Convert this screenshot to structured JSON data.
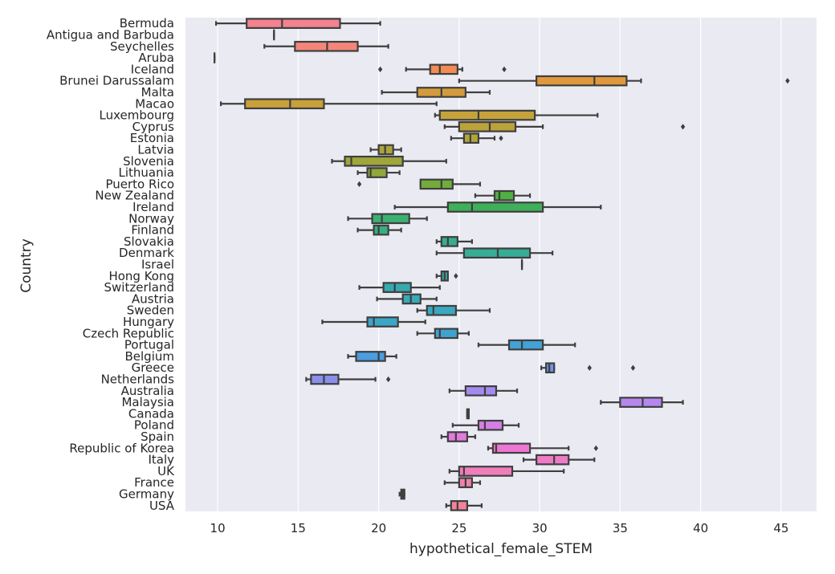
{
  "chart_data": {
    "type": "box",
    "orientation": "horizontal",
    "xlabel": "hypothetical_female_STEM",
    "ylabel": "Country",
    "xlim": [
      8,
      47.2
    ],
    "xticks": [
      10,
      15,
      20,
      25,
      30,
      35,
      40,
      45
    ],
    "grid": true,
    "background": "#EAEAF2",
    "categories": [
      {
        "name": "Bermuda",
        "color": "#f2838f",
        "whislo": 9.9,
        "q1": 11.8,
        "med": 14.0,
        "q3": 17.6,
        "whishi": 20.1,
        "fliers": []
      },
      {
        "name": "Antigua and Barbuda",
        "color": "#f2838f",
        "whislo": 13.5,
        "q1": 13.5,
        "med": 13.5,
        "q3": 13.5,
        "whishi": 13.5,
        "fliers": []
      },
      {
        "name": "Seychelles",
        "color": "#f48679",
        "whislo": 12.9,
        "q1": 14.8,
        "med": 16.8,
        "q3": 18.7,
        "whishi": 20.6,
        "fliers": []
      },
      {
        "name": "Aruba",
        "color": "#f48679",
        "whislo": 9.8,
        "q1": 9.8,
        "med": 9.8,
        "q3": 9.8,
        "whishi": 9.8,
        "fliers": []
      },
      {
        "name": "Iceland",
        "color": "#f38b55",
        "whislo": 21.7,
        "q1": 23.2,
        "med": 23.8,
        "q3": 24.9,
        "whishi": 25.2,
        "fliers": [
          20.1,
          27.8
        ]
      },
      {
        "name": "Brunei Darussalam",
        "color": "#e0983d",
        "whislo": 25.0,
        "q1": 29.8,
        "med": 33.4,
        "q3": 35.4,
        "whishi": 36.3,
        "fliers": [
          45.4
        ]
      },
      {
        "name": "Malta",
        "color": "#d49b3c",
        "whislo": 20.2,
        "q1": 22.4,
        "med": 23.9,
        "q3": 25.4,
        "whishi": 26.9,
        "fliers": []
      },
      {
        "name": "Macao",
        "color": "#c9a03a",
        "whislo": 10.2,
        "q1": 11.7,
        "med": 14.5,
        "q3": 16.6,
        "whishi": 23.6,
        "fliers": []
      },
      {
        "name": "Luxembourg",
        "color": "#c5a33a",
        "whislo": 23.5,
        "q1": 23.8,
        "med": 26.2,
        "q3": 29.7,
        "whishi": 33.6,
        "fliers": []
      },
      {
        "name": "Cyprus",
        "color": "#bba33a",
        "whislo": 24.1,
        "q1": 25.0,
        "med": 26.9,
        "q3": 28.5,
        "whishi": 30.2,
        "fliers": [
          38.9
        ]
      },
      {
        "name": "Estonia",
        "color": "#b3a43a",
        "whislo": 24.5,
        "q1": 25.3,
        "med": 25.7,
        "q3": 26.2,
        "whishi": 27.2,
        "fliers": [
          27.6
        ]
      },
      {
        "name": "Latvia",
        "color": "#aaa63a",
        "whislo": 19.5,
        "q1": 20.0,
        "med": 20.4,
        "q3": 20.9,
        "whishi": 21.4,
        "fliers": []
      },
      {
        "name": "Slovenia",
        "color": "#9fa63a",
        "whislo": 17.1,
        "q1": 17.9,
        "med": 18.3,
        "q3": 21.5,
        "whishi": 24.2,
        "fliers": []
      },
      {
        "name": "Lithuania",
        "color": "#91a83b",
        "whislo": 18.7,
        "q1": 19.3,
        "med": 19.5,
        "q3": 20.5,
        "whishi": 21.3,
        "fliers": []
      },
      {
        "name": "Puerto Rico",
        "color": "#72ac3b",
        "whislo": 22.6,
        "q1": 22.6,
        "med": 23.9,
        "q3": 24.6,
        "whishi": 26.3,
        "fliers": [
          18.8
        ]
      },
      {
        "name": "New Zealand",
        "color": "#50b041",
        "whislo": 26.0,
        "q1": 27.2,
        "med": 27.5,
        "q3": 28.4,
        "whishi": 29.4,
        "fliers": []
      },
      {
        "name": "Ireland",
        "color": "#3fb05a",
        "whislo": 21.0,
        "q1": 24.3,
        "med": 25.8,
        "q3": 30.2,
        "whishi": 33.8,
        "fliers": []
      },
      {
        "name": "Norway",
        "color": "#3bb073",
        "whislo": 18.1,
        "q1": 19.6,
        "med": 20.2,
        "q3": 21.9,
        "whishi": 23.0,
        "fliers": []
      },
      {
        "name": "Finland",
        "color": "#39af81",
        "whislo": 18.7,
        "q1": 19.7,
        "med": 20.0,
        "q3": 20.6,
        "whishi": 21.4,
        "fliers": []
      },
      {
        "name": "Slovakia",
        "color": "#38ae8c",
        "whislo": 23.6,
        "q1": 23.9,
        "med": 24.3,
        "q3": 24.9,
        "whishi": 25.8,
        "fliers": []
      },
      {
        "name": "Denmark",
        "color": "#37ad95",
        "whislo": 23.6,
        "q1": 25.3,
        "med": 27.4,
        "q3": 29.4,
        "whishi": 30.8,
        "fliers": []
      },
      {
        "name": "Israel",
        "color": "#36ac9e",
        "whislo": 28.9,
        "q1": 28.9,
        "med": 28.9,
        "q3": 28.9,
        "whishi": 28.9,
        "fliers": []
      },
      {
        "name": "Hong Kong",
        "color": "#36aba6",
        "whislo": 23.6,
        "q1": 23.9,
        "med": 24.1,
        "q3": 24.3,
        "whishi": 24.3,
        "fliers": [
          24.8
        ]
      },
      {
        "name": "Switzerland",
        "color": "#37aaaf",
        "whislo": 18.8,
        "q1": 20.3,
        "med": 21.0,
        "q3": 22.0,
        "whishi": 23.8,
        "fliers": []
      },
      {
        "name": "Austria",
        "color": "#38a9b7",
        "whislo": 19.9,
        "q1": 21.5,
        "med": 22.0,
        "q3": 22.6,
        "whishi": 23.6,
        "fliers": []
      },
      {
        "name": "Sweden",
        "color": "#3aa8bf",
        "whislo": 22.4,
        "q1": 23.0,
        "med": 23.4,
        "q3": 24.8,
        "whishi": 26.9,
        "fliers": []
      },
      {
        "name": "Hungary",
        "color": "#3ca6c7",
        "whislo": 16.5,
        "q1": 19.3,
        "med": 19.7,
        "q3": 21.2,
        "whishi": 22.9,
        "fliers": []
      },
      {
        "name": "Czech Republic",
        "color": "#3ea4cf",
        "whislo": 22.4,
        "q1": 23.5,
        "med": 23.8,
        "q3": 24.9,
        "whishi": 25.6,
        "fliers": []
      },
      {
        "name": "Portugal",
        "color": "#42a1d7",
        "whislo": 26.2,
        "q1": 28.1,
        "med": 28.9,
        "q3": 30.2,
        "whishi": 32.2,
        "fliers": []
      },
      {
        "name": "Belgium",
        "color": "#4a9de0",
        "whislo": 18.1,
        "q1": 18.6,
        "med": 20.0,
        "q3": 20.4,
        "whishi": 21.1,
        "fliers": []
      },
      {
        "name": "Greece",
        "color": "#6a96e8",
        "whislo": 30.1,
        "q1": 30.4,
        "med": 30.6,
        "q3": 30.9,
        "whishi": 30.9,
        "fliers": [
          33.1,
          35.8
        ]
      },
      {
        "name": "Netherlands",
        "color": "#8a8fec",
        "whislo": 15.5,
        "q1": 15.8,
        "med": 16.6,
        "q3": 17.5,
        "whishi": 19.8,
        "fliers": [
          20.6
        ]
      },
      {
        "name": "Australia",
        "color": "#a38bee",
        "whislo": 24.4,
        "q1": 25.4,
        "med": 26.6,
        "q3": 27.3,
        "whishi": 28.6,
        "fliers": []
      },
      {
        "name": "Malaysia",
        "color": "#b687ee",
        "whislo": 33.8,
        "q1": 35.0,
        "med": 36.4,
        "q3": 37.6,
        "whishi": 38.9,
        "fliers": []
      },
      {
        "name": "Canada",
        "color": "#c784ec",
        "whislo": 25.5,
        "q1": 25.5,
        "med": 25.5,
        "q3": 25.6,
        "whishi": 25.6,
        "fliers": []
      },
      {
        "name": "Poland",
        "color": "#d57fe6",
        "whislo": 24.6,
        "q1": 26.2,
        "med": 26.6,
        "q3": 27.7,
        "whishi": 28.7,
        "fliers": []
      },
      {
        "name": "Spain",
        "color": "#e27adf",
        "whislo": 23.9,
        "q1": 24.3,
        "med": 24.8,
        "q3": 25.5,
        "whishi": 26.0,
        "fliers": []
      },
      {
        "name": "Republic of Korea",
        "color": "#ed76d4",
        "whislo": 26.8,
        "q1": 27.1,
        "med": 27.3,
        "q3": 29.4,
        "whishi": 31.8,
        "fliers": [
          33.5
        ]
      },
      {
        "name": "Italy",
        "color": "#ef7ac6",
        "whislo": 29.0,
        "q1": 29.8,
        "med": 30.9,
        "q3": 31.8,
        "whishi": 33.4,
        "fliers": []
      },
      {
        "name": "UK",
        "color": "#f07eba",
        "whislo": 24.4,
        "q1": 25.0,
        "med": 25.3,
        "q3": 28.3,
        "whishi": 31.5,
        "fliers": []
      },
      {
        "name": "France",
        "color": "#f181ae",
        "whislo": 24.1,
        "q1": 25.0,
        "med": 25.4,
        "q3": 25.8,
        "whishi": 26.3,
        "fliers": []
      },
      {
        "name": "Germany",
        "color": "#f284a2",
        "whislo": 21.3,
        "q1": 21.4,
        "med": 21.5,
        "q3": 21.6,
        "whishi": 21.6,
        "fliers": []
      },
      {
        "name": "USA",
        "color": "#f2839a",
        "whislo": 24.2,
        "q1": 24.5,
        "med": 24.9,
        "q3": 25.5,
        "whishi": 26.4,
        "fliers": []
      }
    ]
  }
}
